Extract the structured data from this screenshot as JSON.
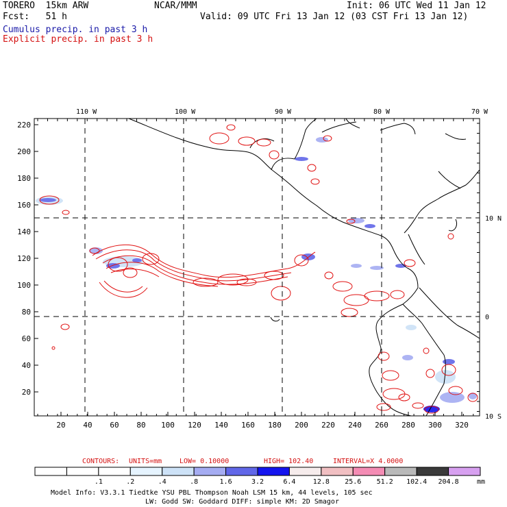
{
  "header": {
    "model": "TORERO  15km ARW",
    "center": "NCAR/MMM",
    "init": "Init: 06 UTC Wed 11 Jan 12",
    "fcst": "Fcst:   51 h",
    "valid": "Valid: 09 UTC Fri 13 Jan 12 (03 CST Fri 13 Jan 12)",
    "legend_cumulus": "Cumulus precip. in past 3 h",
    "legend_explicit": "Explicit precip. in past 3 h"
  },
  "colors": {
    "cumulus_text": "#1a1aa8",
    "explicit_text": "#d41010",
    "contour": "#e01010",
    "coast": "#000000"
  },
  "map": {
    "lon_labels": [
      "110 W",
      "100 W",
      "90 W",
      "80 W",
      "70 W"
    ],
    "lat_labels": [
      "10 N",
      "0",
      "10 S"
    ],
    "y_ticks": [
      "220",
      "200",
      "180",
      "160",
      "140",
      "120",
      "100",
      "80",
      "60",
      "40",
      "20"
    ],
    "x_ticks": [
      "20",
      "40",
      "60",
      "80",
      "100",
      "120",
      "140",
      "160",
      "180",
      "200",
      "220",
      "240",
      "260",
      "280",
      "300",
      "320"
    ]
  },
  "contours_info": {
    "prefix": "CONTOURS:",
    "units": "UNITS=mm",
    "low": "LOW= 0.10000",
    "high": "HIGH= 102.40",
    "interval": "INTERVAL=X 4.0000"
  },
  "colorbar": {
    "labels": [
      ".1",
      ".2",
      ".4",
      ".8",
      "1.6",
      "3.2",
      "6.4",
      "12.8",
      "25.6",
      "51.2",
      "102.4",
      "204.8"
    ],
    "unit": "mm",
    "colors": [
      "#ffffff",
      "#ffffff",
      "#ffffff",
      "#e6f4ff",
      "#cde2f7",
      "#a5acf2",
      "#6167e8",
      "#1414ee",
      "#f6ecec",
      "#f1bfc2",
      "#f48cb4",
      "#b9b9b9",
      "#3a3a3a",
      "#d7a0f0"
    ]
  },
  "footer": {
    "line1": "Model Info: V3.3.1   Tiedtke YSU PBL  Thompson    Noah LSM  15 km,   44 levels,  105 sec",
    "line2": "LW: Godd SW: Goddard DIFF: simple KM: 2D Smagor"
  }
}
